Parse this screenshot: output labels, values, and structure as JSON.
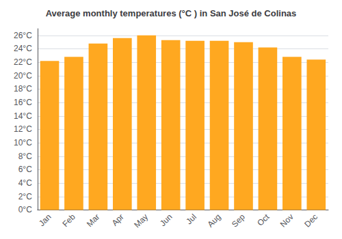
{
  "chart_data": {
    "type": "bar",
    "title": "Average monthly temperatures (°C ) in San José de Colinas",
    "categories": [
      "Jan",
      "Feb",
      "Mar",
      "Apr",
      "May",
      "Jun",
      "Jul",
      "Aug",
      "Sep",
      "Oct",
      "Nov",
      "Dec"
    ],
    "values": [
      22.2,
      22.8,
      24.8,
      25.6,
      26.0,
      25.3,
      25.2,
      25.2,
      25.0,
      24.2,
      22.8,
      22.4
    ],
    "color": "#FFA820",
    "ylim": [
      0,
      27
    ],
    "yticks": [
      {
        "value": 0,
        "label": "0°C"
      },
      {
        "value": 2,
        "label": "2°C"
      },
      {
        "value": 4,
        "label": "4°C"
      },
      {
        "value": 6,
        "label": "6°C"
      },
      {
        "value": 8,
        "label": "8°C"
      },
      {
        "value": 10,
        "label": "10°C"
      },
      {
        "value": 12,
        "label": "12°C"
      },
      {
        "value": 14,
        "label": "14°C"
      },
      {
        "value": 16,
        "label": "16°C"
      },
      {
        "value": 18,
        "label": "18°C"
      },
      {
        "value": 20,
        "label": "20°C"
      },
      {
        "value": 22,
        "label": "22°C"
      },
      {
        "value": 24,
        "label": "24°C"
      },
      {
        "value": 26,
        "label": "26°C"
      }
    ],
    "grid": true
  }
}
